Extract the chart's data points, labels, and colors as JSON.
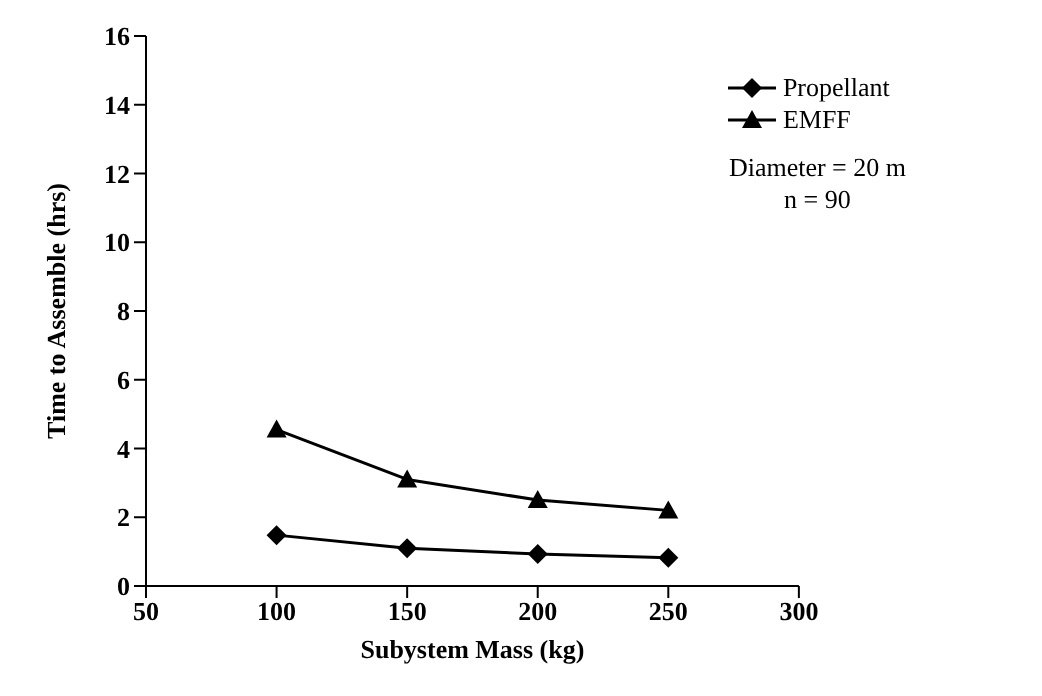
{
  "chart_data": {
    "type": "line",
    "xlabel": "Subystem Mass (kg)",
    "ylabel": "Time to Assemble (hrs)",
    "x": [
      100,
      150,
      200,
      250
    ],
    "series": [
      {
        "name": "Propellant",
        "color": "#000000",
        "marker": "diamond",
        "values": [
          1.48,
          1.1,
          0.93,
          0.82
        ]
      },
      {
        "name": "EMFF",
        "color": "#000000",
        "marker": "triangle",
        "values": [
          4.55,
          3.1,
          2.5,
          2.2
        ]
      }
    ],
    "xlim": [
      50,
      300
    ],
    "xticks": [
      50,
      100,
      150,
      200,
      250,
      300
    ],
    "ylim": [
      0,
      16
    ],
    "yticks": [
      0,
      2,
      4,
      6,
      8,
      10,
      12,
      14,
      16
    ],
    "grid": false,
    "legend": "top right",
    "line_style": "solid",
    "annotations": [
      "Diameter = 20 m",
      "n = 90"
    ]
  }
}
